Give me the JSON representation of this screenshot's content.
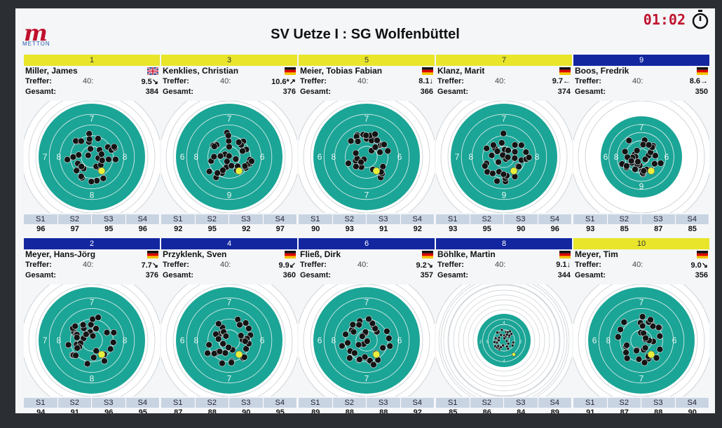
{
  "header": {
    "logo_text": "METTON",
    "title": "SV Uetze I : SG Wolfenbüttel",
    "timer": "01:02"
  },
  "labels": {
    "treffer": "Treffer:",
    "gesamt": "Gesamt:"
  },
  "colors": {
    "yellow_lane": "#e8e52a",
    "blue_lane": "#1326a0",
    "target_green": "#1ba596"
  },
  "competitors": [
    {
      "lane": "1",
      "lane_color": "yellow",
      "name": "Miller, James",
      "flag": "uk",
      "shots": "40:",
      "last": "9.5↘",
      "total": "384",
      "series": [
        {
          "label": "S1",
          "value": "96"
        },
        {
          "label": "S2",
          "value": "97"
        },
        {
          "label": "S3",
          "value": "95"
        },
        {
          "label": "S4",
          "value": "96"
        }
      ],
      "ring_labels": [
        "7",
        "8",
        "8",
        "7",
        "8"
      ]
    },
    {
      "lane": "3",
      "lane_color": "yellow",
      "name": "Kenklies, Christian",
      "flag": "de",
      "shots": "40:",
      "last": "10.6*↗",
      "total": "376",
      "series": [
        {
          "label": "S1",
          "value": "92"
        },
        {
          "label": "S2",
          "value": "95"
        },
        {
          "label": "S3",
          "value": "92"
        },
        {
          "label": "S4",
          "value": "97"
        }
      ],
      "ring_labels": [
        "7",
        "8",
        "6",
        "6",
        "9"
      ]
    },
    {
      "lane": "5",
      "lane_color": "yellow",
      "name": "Meier, Tobias Fabian",
      "flag": "de",
      "shots": "40:",
      "last": "8.1↓",
      "total": "366",
      "series": [
        {
          "label": "S1",
          "value": "90"
        },
        {
          "label": "S2",
          "value": "93"
        },
        {
          "label": "S3",
          "value": "91"
        },
        {
          "label": "S4",
          "value": "92"
        }
      ],
      "ring_labels": [
        "7",
        "8",
        "6",
        "6",
        "7"
      ]
    },
    {
      "lane": "7",
      "lane_color": "yellow",
      "name": "Klanz, Marit",
      "flag": "de",
      "shots": "40:",
      "last": "9.7←",
      "total": "374",
      "series": [
        {
          "label": "S1",
          "value": "93"
        },
        {
          "label": "S2",
          "value": "95"
        },
        {
          "label": "S3",
          "value": "90"
        },
        {
          "label": "S4",
          "value": "96"
        }
      ],
      "ring_labels": [
        "7",
        "8",
        "8",
        "7",
        "9"
      ]
    },
    {
      "lane": "9",
      "lane_color": "blue",
      "name": "Boos, Fredrik",
      "flag": "de",
      "shots": "40:",
      "last": "8.6→",
      "total": "350",
      "series": [
        {
          "label": "S1",
          "value": "93"
        },
        {
          "label": "S2",
          "value": "85"
        },
        {
          "label": "S3",
          "value": "87"
        },
        {
          "label": "S4",
          "value": "85"
        }
      ],
      "ring_labels": [
        "7",
        "8",
        "6",
        "6",
        "9"
      ]
    },
    {
      "lane": "2",
      "lane_color": "blue",
      "name": "Meyer, Hans-Jörg",
      "flag": "de",
      "shots": "40:",
      "last": "7.7↘",
      "total": "376",
      "series": [
        {
          "label": "S1",
          "value": "94"
        },
        {
          "label": "S2",
          "value": "91"
        },
        {
          "label": "S3",
          "value": "96"
        },
        {
          "label": "S4",
          "value": "95"
        }
      ],
      "ring_labels": [
        "7",
        "8",
        "8",
        "7",
        "8"
      ]
    },
    {
      "lane": "4",
      "lane_color": "blue",
      "name": "Przyklenk, Sven",
      "flag": "de",
      "shots": "40:",
      "last": "9.9↙",
      "total": "360",
      "series": [
        {
          "label": "S1",
          "value": "87"
        },
        {
          "label": "S2",
          "value": "88"
        },
        {
          "label": "S3",
          "value": "90"
        },
        {
          "label": "S4",
          "value": "95"
        }
      ],
      "ring_labels": [
        "7",
        "8",
        "6",
        "6",
        "7"
      ]
    },
    {
      "lane": "6",
      "lane_color": "blue",
      "name": "Fließ, Dirk",
      "flag": "de",
      "shots": "40:",
      "last": "9.2↘",
      "total": "357",
      "series": [
        {
          "label": "S1",
          "value": "89"
        },
        {
          "label": "S2",
          "value": "88"
        },
        {
          "label": "S3",
          "value": "88"
        },
        {
          "label": "S4",
          "value": "92"
        }
      ],
      "ring_labels": [
        "7",
        "8",
        "6",
        "6",
        "7"
      ]
    },
    {
      "lane": "8",
      "lane_color": "blue",
      "name": "Böhlke, Martin",
      "flag": "de",
      "shots": "40:",
      "last": "9.1↓",
      "total": "344",
      "series": [
        {
          "label": "S1",
          "value": "85"
        },
        {
          "label": "S2",
          "value": "86"
        },
        {
          "label": "S3",
          "value": "84"
        },
        {
          "label": "S4",
          "value": "89"
        }
      ],
      "ring_labels": [
        "4",
        "5",
        "2",
        "2",
        "4"
      ]
    },
    {
      "lane": "10",
      "lane_color": "yellow",
      "name": "Meyer, Tim",
      "flag": "de",
      "shots": "40:",
      "last": "9.0↘",
      "total": "356",
      "series": [
        {
          "label": "S1",
          "value": "91"
        },
        {
          "label": "S2",
          "value": "87"
        },
        {
          "label": "S3",
          "value": "88"
        },
        {
          "label": "S4",
          "value": "90"
        }
      ],
      "ring_labels": [
        "7",
        "8",
        "6",
        "6",
        "7"
      ]
    }
  ]
}
